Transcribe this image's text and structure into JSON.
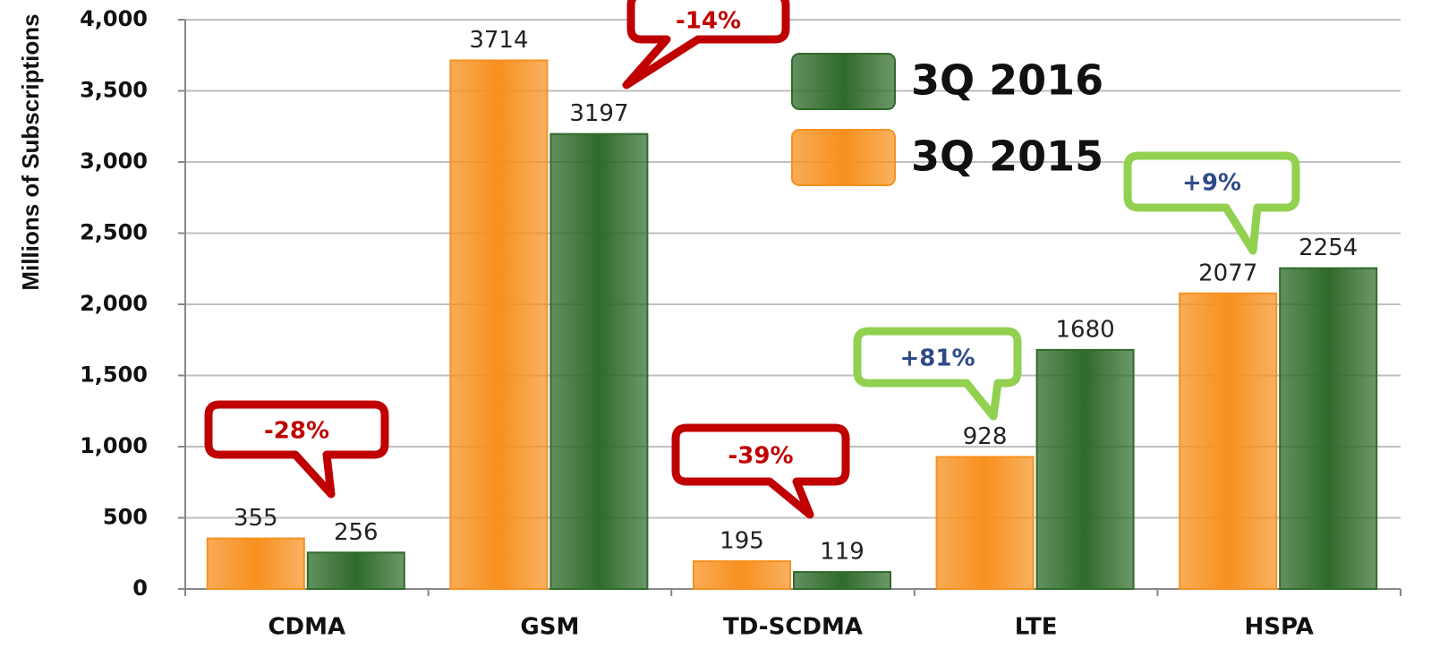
{
  "chart_data": {
    "type": "bar",
    "y_label": "Millions of Subscriptions",
    "categories": [
      "CDMA",
      "GSM",
      "TD-SCDMA",
      "LTE",
      "HSPA"
    ],
    "series": [
      {
        "name": "3Q 2015",
        "color": "#f7901e",
        "values": [
          355,
          3714,
          195,
          928,
          2077
        ]
      },
      {
        "name": "3Q 2016",
        "color": "#2f6b2a",
        "values": [
          256,
          3197,
          119,
          1680,
          2254
        ]
      }
    ],
    "ylim": [
      0,
      4000
    ],
    "yticks": [
      0,
      500,
      {
        "value": 1000,
        "label": "1,000"
      },
      {
        "value": 1500,
        "label": "1,500"
      },
      {
        "value": 2000,
        "label": "2,000"
      },
      {
        "value": 2500,
        "label": "2,500"
      },
      {
        "value": 3000,
        "label": "3,000"
      },
      {
        "value": 3500,
        "label": "3,500"
      },
      {
        "value": 4000,
        "label": "4,000"
      }
    ],
    "grid": true,
    "annotations": [
      "-28%",
      "-14%",
      "-39%",
      "+81%",
      "+9%"
    ]
  }
}
